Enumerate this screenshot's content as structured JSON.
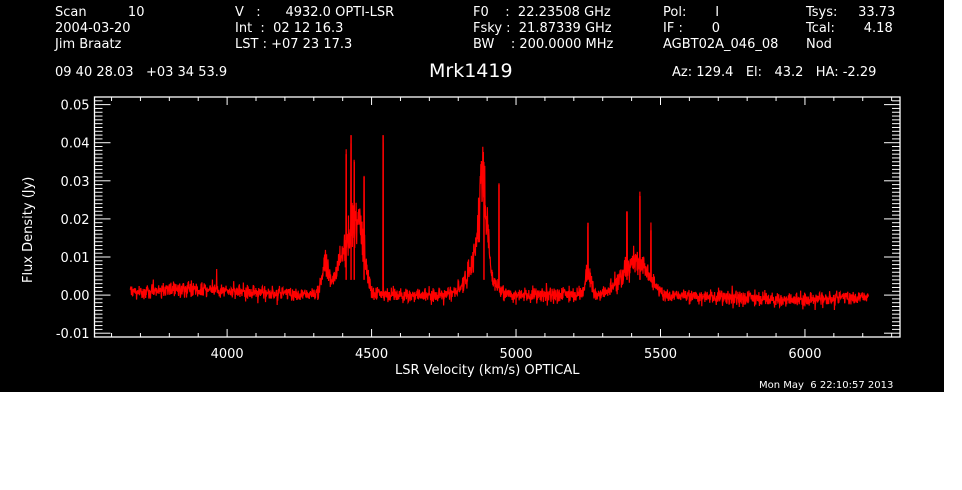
{
  "header": {
    "col1": [
      "Scan          10",
      "2004-03-20",
      "Jim Braatz"
    ],
    "col2": [
      "V   :      4932.0 OPTI-LSR",
      "Int  :  02 12 16.3",
      "LST : +07 23 17.3"
    ],
    "col3": [
      "F0    :  22.23508 GHz",
      "Fsky :  21.87339 GHz",
      "BW    : 200.0000 MHz"
    ],
    "col4": [
      "Pol:       I",
      "IF :       0",
      "AGBT02A_046_08"
    ],
    "col5": [
      "Tsys:     33.73",
      "Tcal:       4.18",
      "Nod"
    ],
    "coords": "09 40 28.03   +03 34 53.9",
    "source": "Mrk1419",
    "azelha": "Az: 129.4   El:   43.2   HA: -2.29",
    "timestamp": "Mon May  6 22:10:57 2013"
  },
  "colors": {
    "background": "#000000",
    "axes": "#ffffff",
    "trace": "#ff0000"
  },
  "chart_data": {
    "type": "line",
    "title": "Mrk1419",
    "xlabel": "LSR Velocity (km/s) OPTICAL",
    "ylabel": "Flux Density (Jy)",
    "xlim": [
      3541,
      6329
    ],
    "ylim": [
      -0.011,
      0.052
    ],
    "xticks": [
      4000,
      4500,
      5000,
      5500,
      6000
    ],
    "xtick_labels": [
      "4000",
      "4500",
      "5000",
      "5500",
      "6000"
    ],
    "yticks": [
      -0.01,
      0.0,
      0.01,
      0.02,
      0.03,
      0.04,
      0.05
    ],
    "ytick_labels": [
      "-0.01",
      "0.00",
      "0.01",
      "0.02",
      "0.03",
      "0.04",
      "0.05"
    ],
    "grid": false,
    "legend": "none",
    "series": [
      {
        "name": "spectrum",
        "x_range": [
          3665,
          6220
        ],
        "noise_rms": 0.0014,
        "baseline_ripple": [
          {
            "center": 3880,
            "amp": 0.0015,
            "width": 180
          },
          {
            "center": 5950,
            "amp": -0.0012,
            "width": 200
          }
        ],
        "broad_components": [
          {
            "center": 4340,
            "amp": 0.008,
            "width": 12
          },
          {
            "center": 4395,
            "amp": 0.009,
            "width": 20
          },
          {
            "center": 4440,
            "amp": 0.017,
            "width": 22
          },
          {
            "center": 4470,
            "amp": 0.008,
            "width": 14
          },
          {
            "center": 4885,
            "amp": 0.022,
            "width": 14
          },
          {
            "center": 4870,
            "amp": 0.008,
            "width": 40
          },
          {
            "center": 5250,
            "amp": 0.006,
            "width": 10
          },
          {
            "center": 5390,
            "amp": 0.006,
            "width": 40
          },
          {
            "center": 5440,
            "amp": 0.005,
            "width": 30
          }
        ],
        "narrow_peaks": [
          {
            "v": 4412,
            "flux": 0.037
          },
          {
            "v": 4429,
            "flux": 0.042
          },
          {
            "v": 4440,
            "flux": 0.035
          },
          {
            "v": 4474,
            "flux": 0.031
          },
          {
            "v": 4540,
            "flux": 0.042
          },
          {
            "v": 4889,
            "flux": 0.034
          },
          {
            "v": 4941,
            "flux": 0.029
          },
          {
            "v": 5249,
            "flux": 0.019
          },
          {
            "v": 5384,
            "flux": 0.022
          },
          {
            "v": 5429,
            "flux": 0.026
          },
          {
            "v": 5467,
            "flux": 0.017
          }
        ]
      }
    ]
  }
}
